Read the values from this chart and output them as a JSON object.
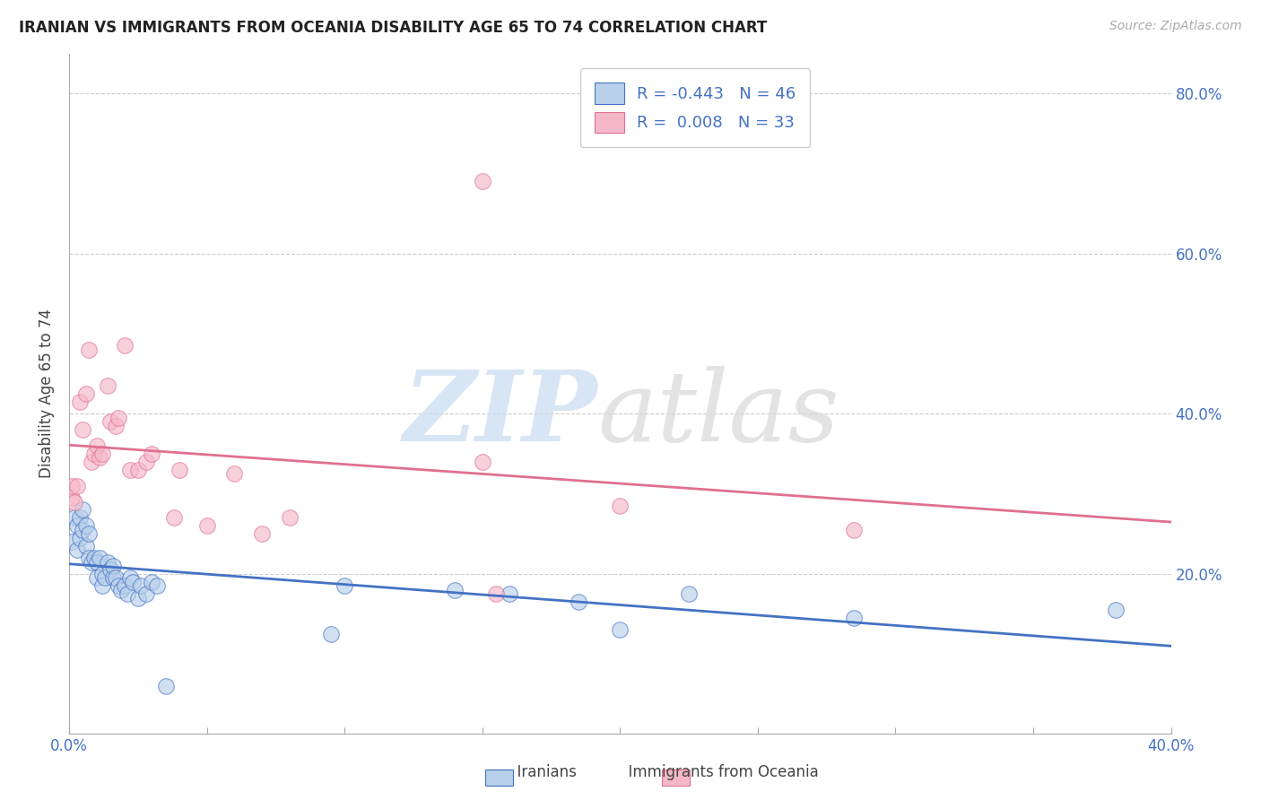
{
  "title": "IRANIAN VS IMMIGRANTS FROM OCEANIA DISABILITY AGE 65 TO 74 CORRELATION CHART",
  "source": "Source: ZipAtlas.com",
  "ylabel": "Disability Age 65 to 74",
  "xlim": [
    0.0,
    0.4
  ],
  "ylim": [
    0.0,
    0.85
  ],
  "xticks": [
    0.0,
    0.05,
    0.1,
    0.15,
    0.2,
    0.25,
    0.3,
    0.35,
    0.4
  ],
  "xtick_labels": [
    "0.0%",
    "",
    "",
    "",
    "",
    "",
    "",
    "",
    "40.0%"
  ],
  "yticks": [
    0.2,
    0.4,
    0.6,
    0.8
  ],
  "ytick_labels": [
    "20.0%",
    "40.0%",
    "60.0%",
    "80.0%"
  ],
  "iranians_R": -0.443,
  "iranians_N": 46,
  "oceania_R": 0.008,
  "oceania_N": 33,
  "iranian_color": "#b8d0ea",
  "oceania_color": "#f5b8c8",
  "iranian_line_color": "#4472c4",
  "oceania_line_color": "#e07090",
  "iranians_x": [
    0.001,
    0.002,
    0.003,
    0.003,
    0.004,
    0.004,
    0.005,
    0.005,
    0.006,
    0.006,
    0.007,
    0.007,
    0.008,
    0.009,
    0.01,
    0.01,
    0.011,
    0.012,
    0.012,
    0.013,
    0.014,
    0.015,
    0.016,
    0.016,
    0.017,
    0.018,
    0.019,
    0.02,
    0.021,
    0.022,
    0.023,
    0.025,
    0.026,
    0.028,
    0.03,
    0.032,
    0.035,
    0.095,
    0.1,
    0.14,
    0.16,
    0.185,
    0.2,
    0.225,
    0.285,
    0.38
  ],
  "iranians_y": [
    0.24,
    0.27,
    0.26,
    0.23,
    0.27,
    0.245,
    0.28,
    0.255,
    0.26,
    0.235,
    0.25,
    0.22,
    0.215,
    0.22,
    0.215,
    0.195,
    0.22,
    0.2,
    0.185,
    0.195,
    0.215,
    0.205,
    0.195,
    0.21,
    0.195,
    0.185,
    0.18,
    0.185,
    0.175,
    0.195,
    0.19,
    0.17,
    0.185,
    0.175,
    0.19,
    0.185,
    0.06,
    0.125,
    0.185,
    0.18,
    0.175,
    0.165,
    0.13,
    0.175,
    0.145,
    0.155
  ],
  "oceania_x": [
    0.001,
    0.001,
    0.002,
    0.003,
    0.004,
    0.005,
    0.006,
    0.007,
    0.008,
    0.009,
    0.01,
    0.011,
    0.012,
    0.014,
    0.015,
    0.017,
    0.018,
    0.02,
    0.022,
    0.025,
    0.028,
    0.03,
    0.038,
    0.04,
    0.05,
    0.06,
    0.07,
    0.08,
    0.15,
    0.2,
    0.155,
    0.285,
    0.15
  ],
  "oceania_y": [
    0.295,
    0.31,
    0.29,
    0.31,
    0.415,
    0.38,
    0.425,
    0.48,
    0.34,
    0.35,
    0.36,
    0.345,
    0.35,
    0.435,
    0.39,
    0.385,
    0.395,
    0.485,
    0.33,
    0.33,
    0.34,
    0.35,
    0.27,
    0.33,
    0.26,
    0.325,
    0.25,
    0.27,
    0.34,
    0.285,
    0.175,
    0.255,
    0.69
  ]
}
